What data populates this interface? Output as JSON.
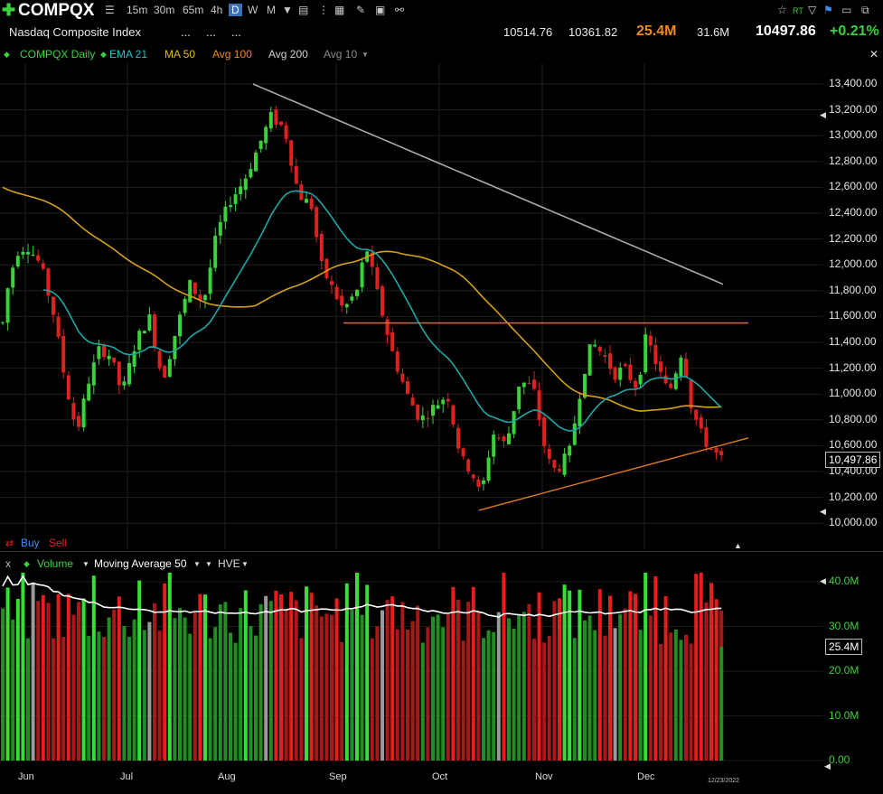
{
  "toolbar": {
    "symbol": "COMPQX",
    "timeframes": [
      "15m",
      "30m",
      "65m",
      "4h",
      "D",
      "W",
      "M"
    ],
    "active_timeframe": "D"
  },
  "quote": {
    "name": "Nasdaq Composite Index",
    "dots": [
      "...",
      "...",
      "..."
    ],
    "high": "10514.76",
    "low": "10361.82",
    "volume": "25.4M",
    "avg_volume": "31.6M",
    "last": "10497.86",
    "change": "+0.21%"
  },
  "legend": {
    "series": "COMPQX Daily",
    "ema21": "EMA 21",
    "ma50": "MA 50",
    "avg100": "Avg 100",
    "avg200": "Avg 200",
    "avg10": "Avg 10"
  },
  "buy_label": "Buy",
  "sell_label": "Sell",
  "volume_header": {
    "close": "x",
    "volume": "Volume",
    "ma": "Moving Average 50",
    "hve": "HVE"
  },
  "price_axis": {
    "ticks": [
      "13,400.00",
      "13,200.00",
      "13,000.00",
      "12,800.00",
      "12,600.00",
      "12,400.00",
      "12,200.00",
      "12,000.00",
      "11,800.00",
      "11,600.00",
      "11,400.00",
      "11,200.00",
      "11,000.00",
      "10,800.00",
      "10,600.00",
      "10,400.00",
      "10,200.00",
      "10,000.00"
    ],
    "last_badge": "10,497.86"
  },
  "volume_axis": {
    "ticks": [
      "40.0M",
      "30.0M",
      "20.0M",
      "10.0M",
      "0.00"
    ],
    "last_badge": "25.4M"
  },
  "months": [
    "Jun",
    "Jul",
    "Aug",
    "Sep",
    "Oct",
    "Nov",
    "Dec"
  ],
  "date_badge": "12/23/2022",
  "colors": {
    "up": "#3bd13b",
    "down": "#e02020",
    "ema21": "#1fa6a6",
    "ma50": "#d4a017",
    "avg200": "#aaaaaa",
    "trend": "#e07a1a"
  },
  "chart_data": {
    "type": "candlestick",
    "ylim": [
      10000,
      13500
    ],
    "resistance_level": 11550,
    "support_trendline": [
      [
        10100,
        10660
      ]
    ],
    "volume_ylim": [
      0,
      45
    ],
    "volume_units": "M",
    "last_volume": 25.4
  }
}
